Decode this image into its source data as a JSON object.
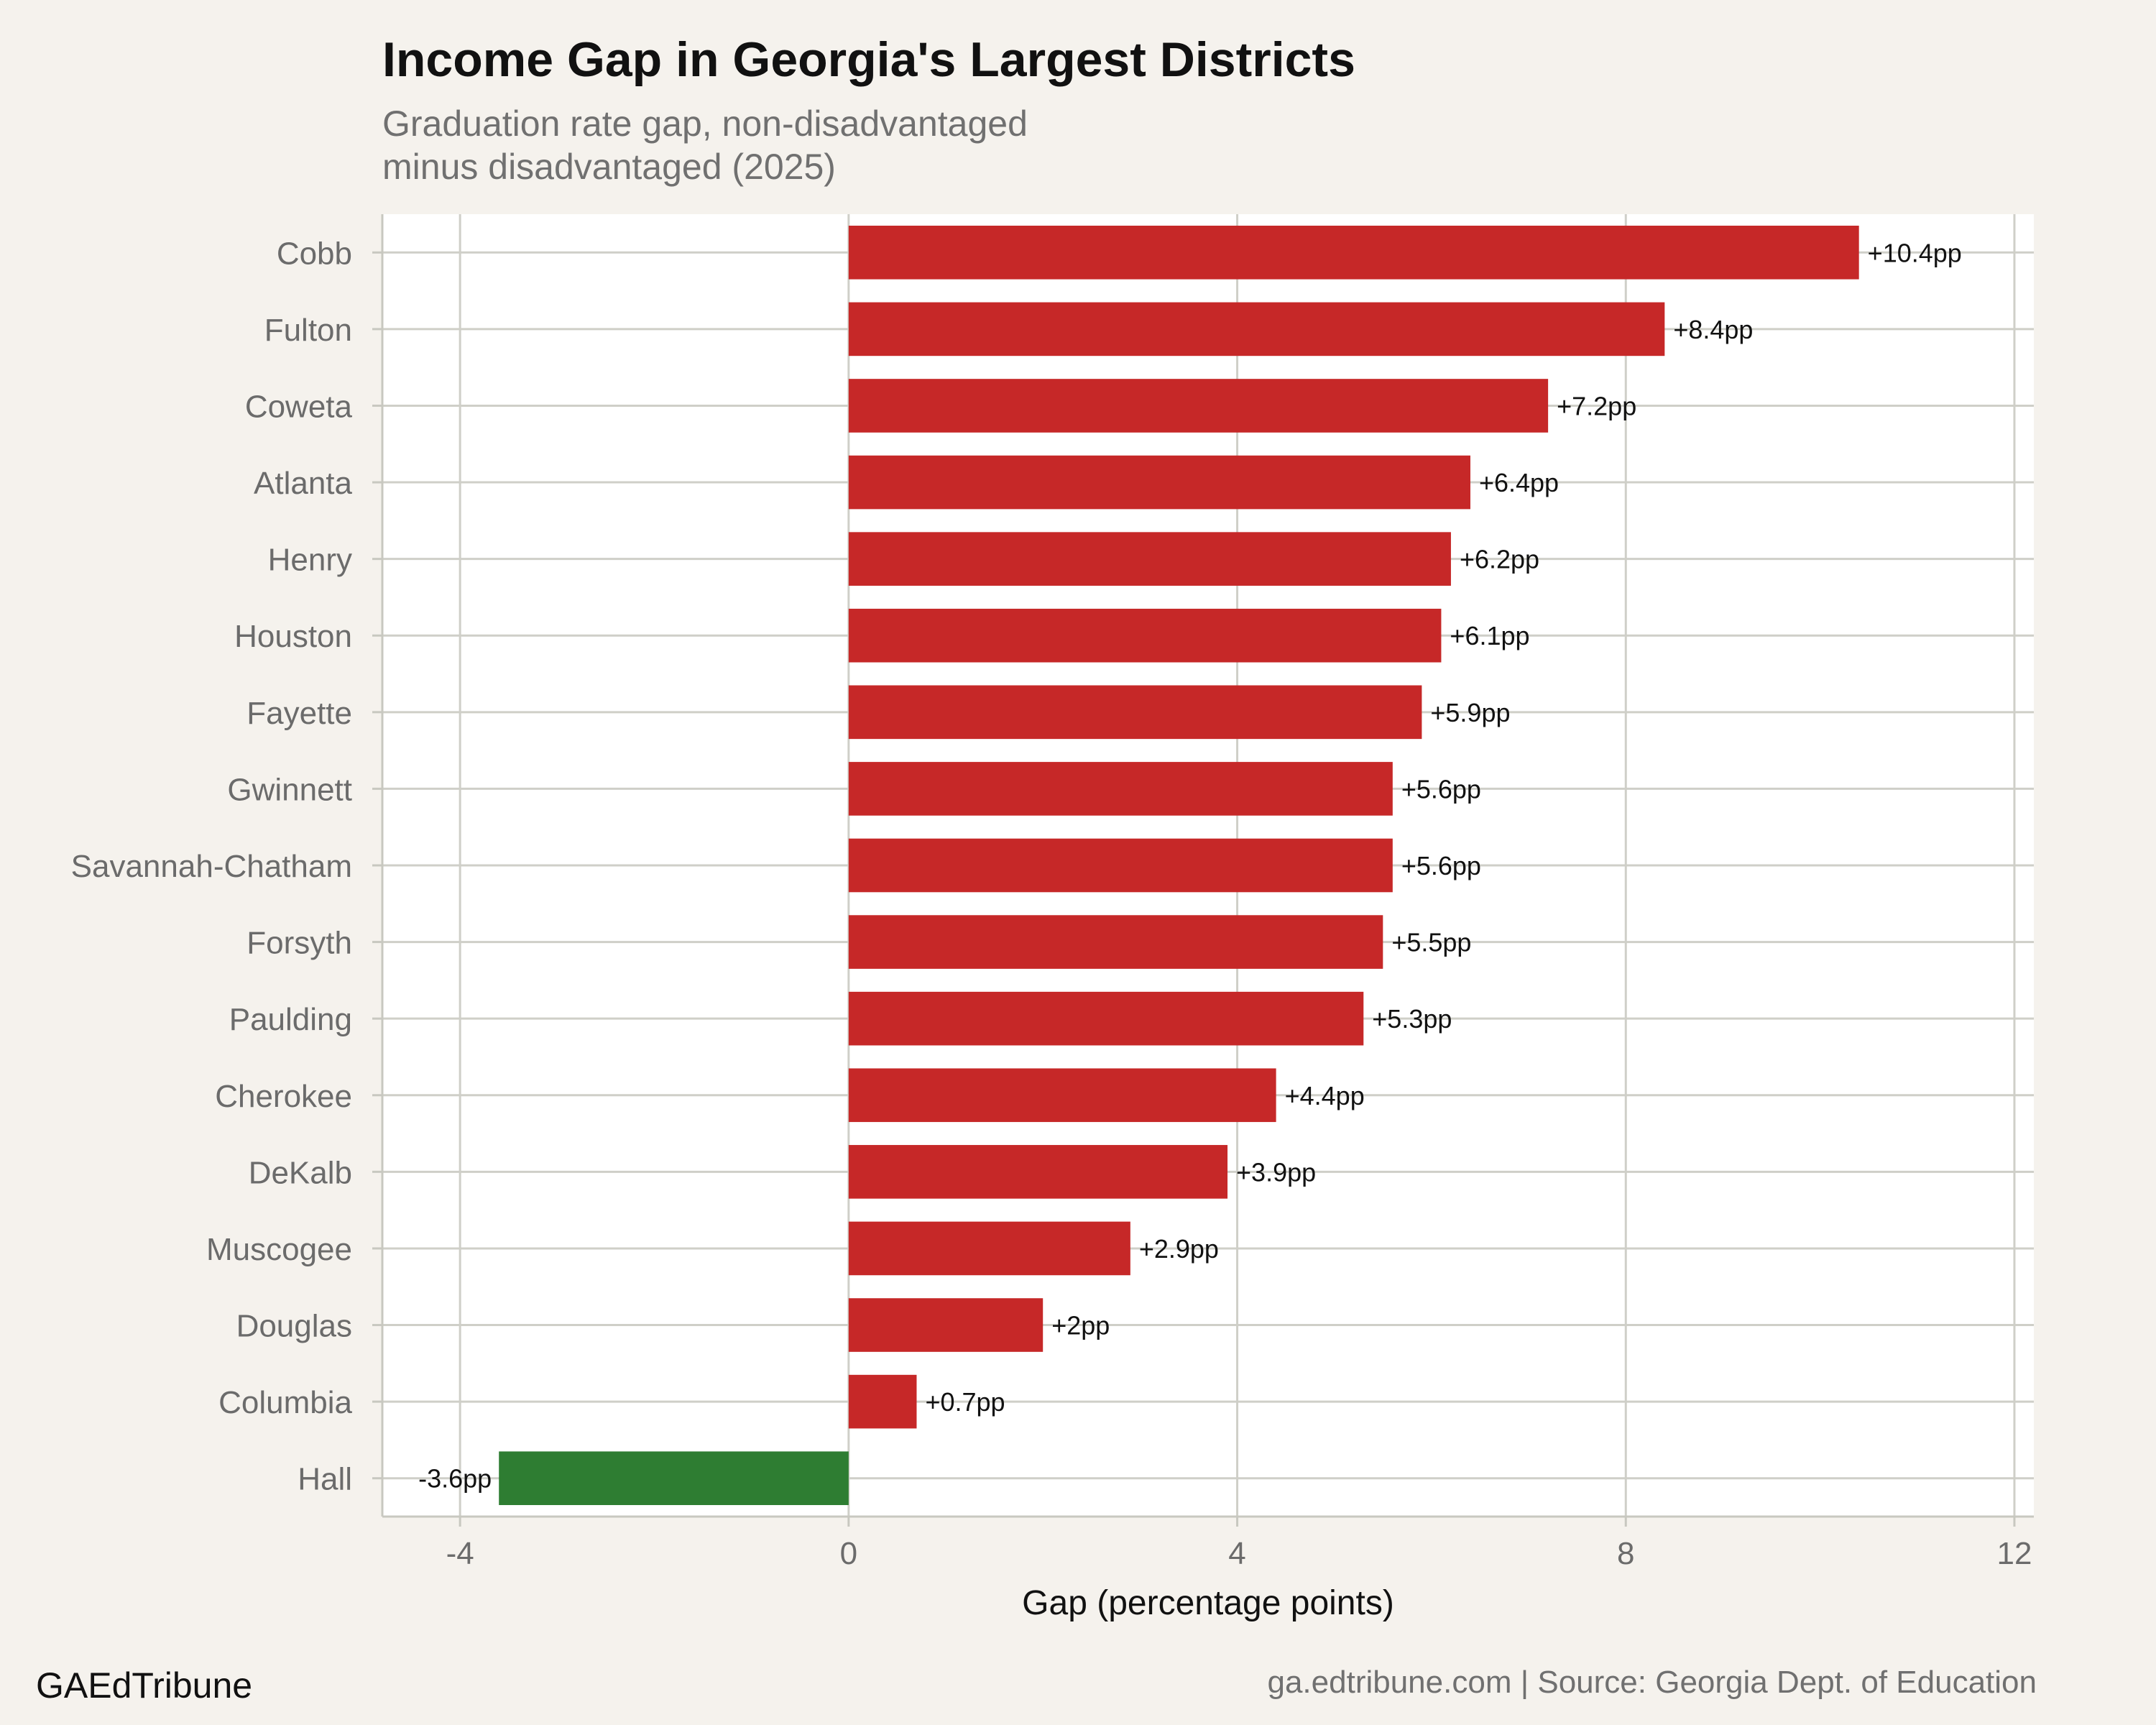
{
  "chart_data": {
    "type": "bar",
    "orientation": "horizontal",
    "title": "Income Gap in Georgia's Largest Districts",
    "subtitle": [
      "Graduation rate gap, non-disadvantaged",
      "minus disadvantaged (2025)"
    ],
    "xlabel": "Gap (percentage points)",
    "ylabel": "",
    "xlim": [
      -4.8,
      12.2
    ],
    "xticks": [
      -4,
      0,
      4,
      8,
      12
    ],
    "xtick_labels": [
      "-4",
      "0",
      "4",
      "8",
      "12"
    ],
    "grid": true,
    "legend": "none",
    "categories": [
      "Cobb",
      "Fulton",
      "Coweta",
      "Atlanta",
      "Henry",
      "Houston",
      "Fayette",
      "Gwinnett",
      "Savannah-Chatham",
      "Forsyth",
      "Paulding",
      "Cherokee",
      "DeKalb",
      "Muscogee",
      "Douglas",
      "Columbia",
      "Hall"
    ],
    "values": [
      10.4,
      8.4,
      7.2,
      6.4,
      6.2,
      6.1,
      5.9,
      5.6,
      5.6,
      5.5,
      5.3,
      4.4,
      3.9,
      2.9,
      2.0,
      0.7,
      -3.6
    ],
    "data_labels": [
      "+10.4pp",
      "+8.4pp",
      "+7.2pp",
      "+6.4pp",
      "+6.2pp",
      "+6.1pp",
      "+5.9pp",
      "+5.6pp",
      "+5.6pp",
      "+5.5pp",
      "+5.3pp",
      "+4.4pp",
      "+3.9pp",
      "+2.9pp",
      "+2pp",
      "+0.7pp",
      "-3.6pp"
    ],
    "colors": {
      "positive": "#c62828",
      "negative": "#2e7d32"
    }
  },
  "footer": {
    "brand": "GAEdTribune",
    "source": "ga.edtribune.com | Source: Georgia Dept. of Education"
  }
}
